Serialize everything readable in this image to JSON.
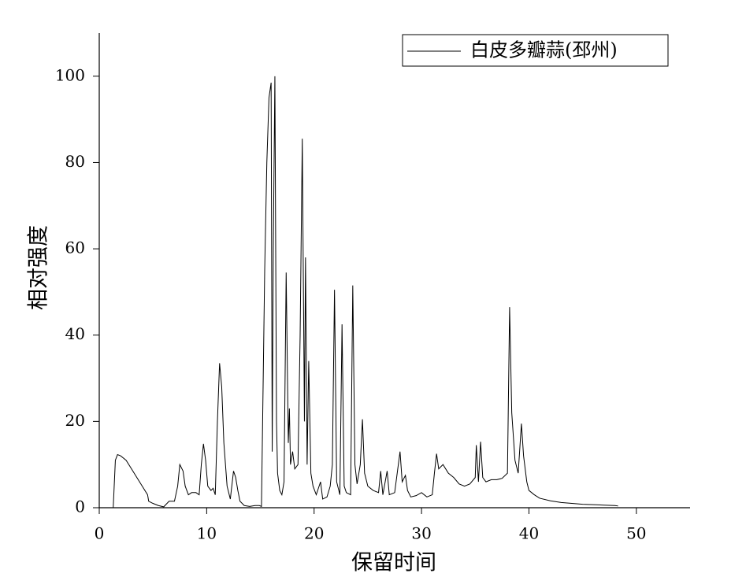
{
  "chart_data": {
    "type": "line",
    "xlabel": "保留时间",
    "ylabel": "相对强度",
    "xlim": [
      0,
      55
    ],
    "ylim": [
      0,
      110
    ],
    "xticks": [
      0,
      10,
      20,
      30,
      40,
      50
    ],
    "yticks": [
      0,
      20,
      40,
      60,
      80,
      100
    ],
    "legend": "upper right",
    "x": [
      1.3,
      1.5,
      1.7,
      2.0,
      2.5,
      3.0,
      3.5,
      4.0,
      4.5,
      4.6,
      5.0,
      5.5,
      6.0,
      6.5,
      7.0,
      7.3,
      7.5,
      7.8,
      8.0,
      8.3,
      8.6,
      9.0,
      9.3,
      9.5,
      9.7,
      9.9,
      10.1,
      10.4,
      10.6,
      10.8,
      11.0,
      11.2,
      11.4,
      11.6,
      11.9,
      12.2,
      12.5,
      12.7,
      12.9,
      13.1,
      13.5,
      14.0,
      14.5,
      14.9,
      15.1,
      15.4,
      15.6,
      15.8,
      16.0,
      16.1,
      16.2,
      16.35,
      16.5,
      16.6,
      16.8,
      17.0,
      17.2,
      17.4,
      17.6,
      17.7,
      17.8,
      18.0,
      18.2,
      18.5,
      18.7,
      18.9,
      19.1,
      19.2,
      19.35,
      19.5,
      19.7,
      19.9,
      20.2,
      20.6,
      20.8,
      21.2,
      21.5,
      21.7,
      21.9,
      22.1,
      22.4,
      22.6,
      22.8,
      23.0,
      23.4,
      23.6,
      23.8,
      24.0,
      24.3,
      24.5,
      24.7,
      25.0,
      25.5,
      26.0,
      26.2,
      26.4,
      26.8,
      27.0,
      27.5,
      28.0,
      28.2,
      28.5,
      28.7,
      29.0,
      29.5,
      30.0,
      30.5,
      31.0,
      31.2,
      31.4,
      31.6,
      32.0,
      32.5,
      33.0,
      33.5,
      34.0,
      34.5,
      35.0,
      35.1,
      35.3,
      35.5,
      35.7,
      36.0,
      36.5,
      37.0,
      37.5,
      38.0,
      38.2,
      38.4,
      38.7,
      39.0,
      39.3,
      39.5,
      39.8,
      40.0,
      40.5,
      41.0,
      42.0,
      43.0,
      44.0,
      45.0,
      46.0,
      47.0,
      48.0,
      48.3
    ],
    "series": [
      {
        "name": "白皮多瓣蒜(邳州)",
        "color": "#000000",
        "values": [
          0,
          11,
          12.3,
          12,
          11,
          9,
          7,
          5,
          3,
          1.5,
          1,
          0.5,
          0.2,
          1.5,
          1.5,
          5,
          10,
          8.5,
          5,
          3,
          3.5,
          3.5,
          3,
          10,
          14.8,
          11,
          5,
          4,
          4.5,
          3,
          20,
          33.5,
          28,
          15,
          5,
          2,
          8.5,
          7,
          4,
          1.5,
          0.5,
          0.3,
          0.5,
          0.5,
          0.3,
          55,
          80,
          95,
          98.5,
          13,
          60,
          100,
          20,
          8,
          4,
          3,
          6,
          54.5,
          15,
          23,
          10,
          13,
          9,
          10,
          40,
          85.5,
          20,
          58,
          10,
          34,
          8,
          5,
          3,
          6,
          2,
          2.5,
          5,
          10,
          50.5,
          6,
          3,
          42.5,
          5,
          3.5,
          3,
          51.5,
          10,
          5.5,
          10,
          20.5,
          8,
          5,
          4,
          3.5,
          8.5,
          3,
          8.5,
          3,
          3.5,
          13,
          6,
          7.5,
          4,
          2.5,
          2.8,
          3.5,
          2.5,
          3,
          8,
          12.5,
          9,
          10,
          8,
          7,
          5.5,
          5,
          5.5,
          7,
          14.5,
          6,
          15.3,
          7,
          6,
          6.5,
          6.5,
          6.8,
          8,
          46.5,
          22,
          11,
          8,
          19.5,
          12,
          6,
          4,
          3,
          2.2,
          1.6,
          1.2,
          1,
          0.8,
          0.7,
          0.6,
          0.5,
          0.4
        ]
      }
    ]
  }
}
